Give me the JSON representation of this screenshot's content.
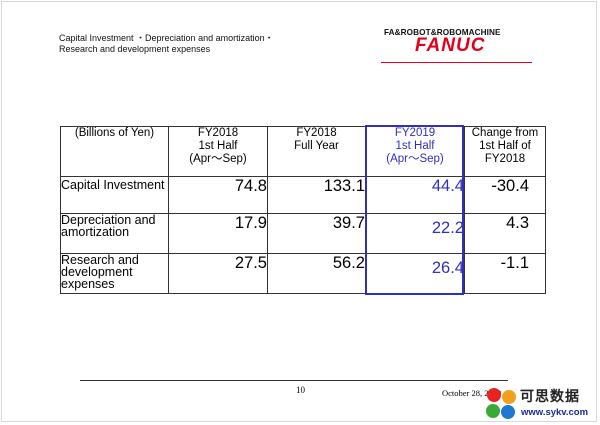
{
  "header": {
    "title_line1": "Capital Investment ・Depreciation and amortization・",
    "title_line2": "Research and development expenses"
  },
  "logo": {
    "tagline": "FA&ROBOT&ROBOMACHINE",
    "brand": "FANUC",
    "brand_color": "#e4001b"
  },
  "table": {
    "unit_label": "(Billions of Yen)",
    "columns": [
      {
        "line1": "FY2018",
        "line2": "1st Half",
        "line3": "(Apr～Sep)"
      },
      {
        "line1": "FY2018",
        "line2": "Full Year",
        "line3": ""
      },
      {
        "line1": "FY2019",
        "line2": "1st Half",
        "line3": "(Apr～Sep)"
      },
      {
        "line1": "Change from",
        "line2": "1st Half of",
        "line3": "FY2018"
      }
    ],
    "rows": [
      {
        "label": "Capital Investment",
        "values": [
          "74.8",
          "133.1",
          "44.4",
          "-30.4"
        ]
      },
      {
        "label": "Depreciation and amortization",
        "values": [
          "17.9",
          "39.7",
          "22.2",
          "4.3"
        ]
      },
      {
        "label": "Research and development expenses",
        "values": [
          "27.5",
          "56.2",
          "26.4",
          "-1.1"
        ]
      }
    ],
    "highlight_color": "#3030b8"
  },
  "footer": {
    "page_number": "10",
    "date": "October 28, 2019"
  },
  "watermark": {
    "text_cn": "可思数据",
    "url": "www.sykv.com"
  }
}
